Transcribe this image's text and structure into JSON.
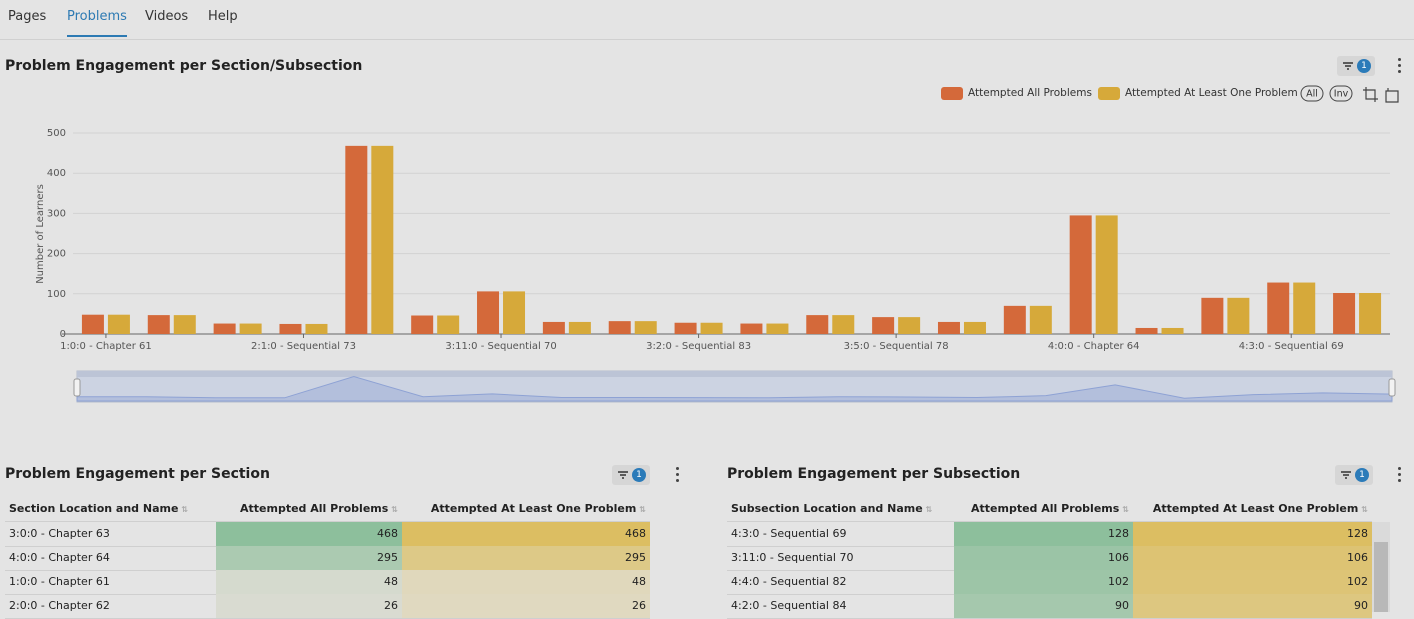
{
  "tabs": [
    "Pages",
    "Problems",
    "Videos",
    "Help"
  ],
  "active_tab": 1,
  "chart_data": {
    "type": "bar",
    "title": "Problem Engagement per Section/Subsection",
    "filter_badge": 1,
    "y_label": "Number of Learners",
    "categories": [
      "1:0:0 - Chapter 61",
      null,
      null,
      "2:1:0 - Sequential 73",
      null,
      null,
      "3:11:0 - Sequential 70",
      null,
      null,
      "3:2:0 - Sequential 83",
      null,
      null,
      "3:5:0 - Sequential 78",
      null,
      null,
      "4:0:0 - Chapter 64",
      null,
      null,
      "4:3:0 - Sequential 69",
      null
    ],
    "series": [
      {
        "name": "Attempted All Problems",
        "color": "#d4693a",
        "values": [
          48,
          47,
          26,
          25,
          468,
          46,
          106,
          30,
          32,
          28,
          26,
          47,
          42,
          30,
          70,
          295,
          15,
          90,
          128,
          102
        ]
      },
      {
        "name": "Attempted At Least One Problem",
        "color": "#d6a93a",
        "values": [
          48,
          47,
          26,
          25,
          468,
          46,
          106,
          30,
          32,
          28,
          26,
          47,
          42,
          30,
          70,
          295,
          15,
          90,
          128,
          102
        ]
      }
    ],
    "ylim": [
      0,
      500
    ],
    "yticks": [
      0,
      100,
      200,
      300,
      400,
      500
    ],
    "grid": true,
    "legend": "top-right",
    "legend_buttons": [
      "All",
      "Inv"
    ]
  },
  "tables": [
    {
      "title": "Problem Engagement per Section",
      "filter_badge": 1,
      "columns": [
        "Section Location and Name",
        "Attempted All Problems",
        "Attempted At Least One Problem"
      ],
      "rows": [
        [
          "3:0:0 - Chapter 63",
          468,
          468
        ],
        [
          "4:0:0 - Chapter 64",
          295,
          295
        ],
        [
          "1:0:0 - Chapter 61",
          48,
          48
        ],
        [
          "2:0:0 - Chapter 62",
          26,
          26
        ]
      ]
    },
    {
      "title": "Problem Engagement per Subsection",
      "filter_badge": 1,
      "columns": [
        "Subsection Location and Name",
        "Attempted All Problems",
        "Attempted At Least One Problem"
      ],
      "rows": [
        [
          "4:3:0 - Sequential 69",
          128,
          128
        ],
        [
          "3:11:0 - Sequential 70",
          106,
          106
        ],
        [
          "4:4:0 - Sequential 82",
          102,
          102
        ],
        [
          "4:2:0 - Sequential 84",
          90,
          90
        ]
      ]
    }
  ]
}
